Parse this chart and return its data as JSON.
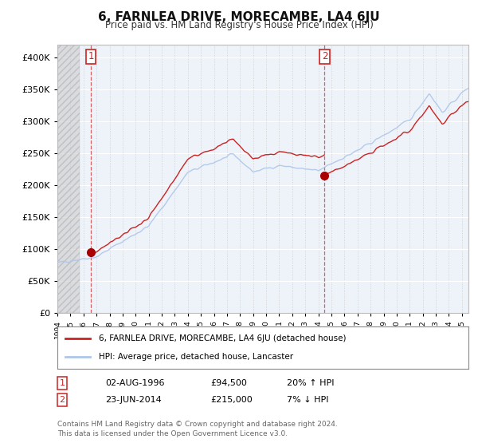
{
  "title": "6, FARNLEA DRIVE, MORECAMBE, LA4 6JU",
  "subtitle": "Price paid vs. HM Land Registry's House Price Index (HPI)",
  "ylim": [
    0,
    420000
  ],
  "yticks": [
    0,
    50000,
    100000,
    150000,
    200000,
    250000,
    300000,
    350000,
    400000
  ],
  "xlim_start": 1994.0,
  "xlim_end": 2025.5,
  "sale1_date": 1996.585,
  "sale1_price": 94500,
  "sale2_date": 2014.479,
  "sale2_price": 215000,
  "hpi_color": "#aec6e8",
  "price_color": "#cc2222",
  "marker_color": "#aa0000",
  "legend_house": "6, FARNLEA DRIVE, MORECAMBE, LA4 6JU (detached house)",
  "legend_hpi": "HPI: Average price, detached house, Lancaster",
  "sale1_label": "02-AUG-1996",
  "sale1_price_str": "£94,500",
  "sale1_hpi": "20% ↑ HPI",
  "sale2_label": "23-JUN-2014",
  "sale2_price_str": "£215,000",
  "sale2_hpi": "7% ↓ HPI",
  "copyright": "Contains HM Land Registry data © Crown copyright and database right 2024.\nThis data is licensed under the Open Government Licence v3.0.",
  "chart_bg": "#eef3fa",
  "fig_bg": "#ffffff"
}
